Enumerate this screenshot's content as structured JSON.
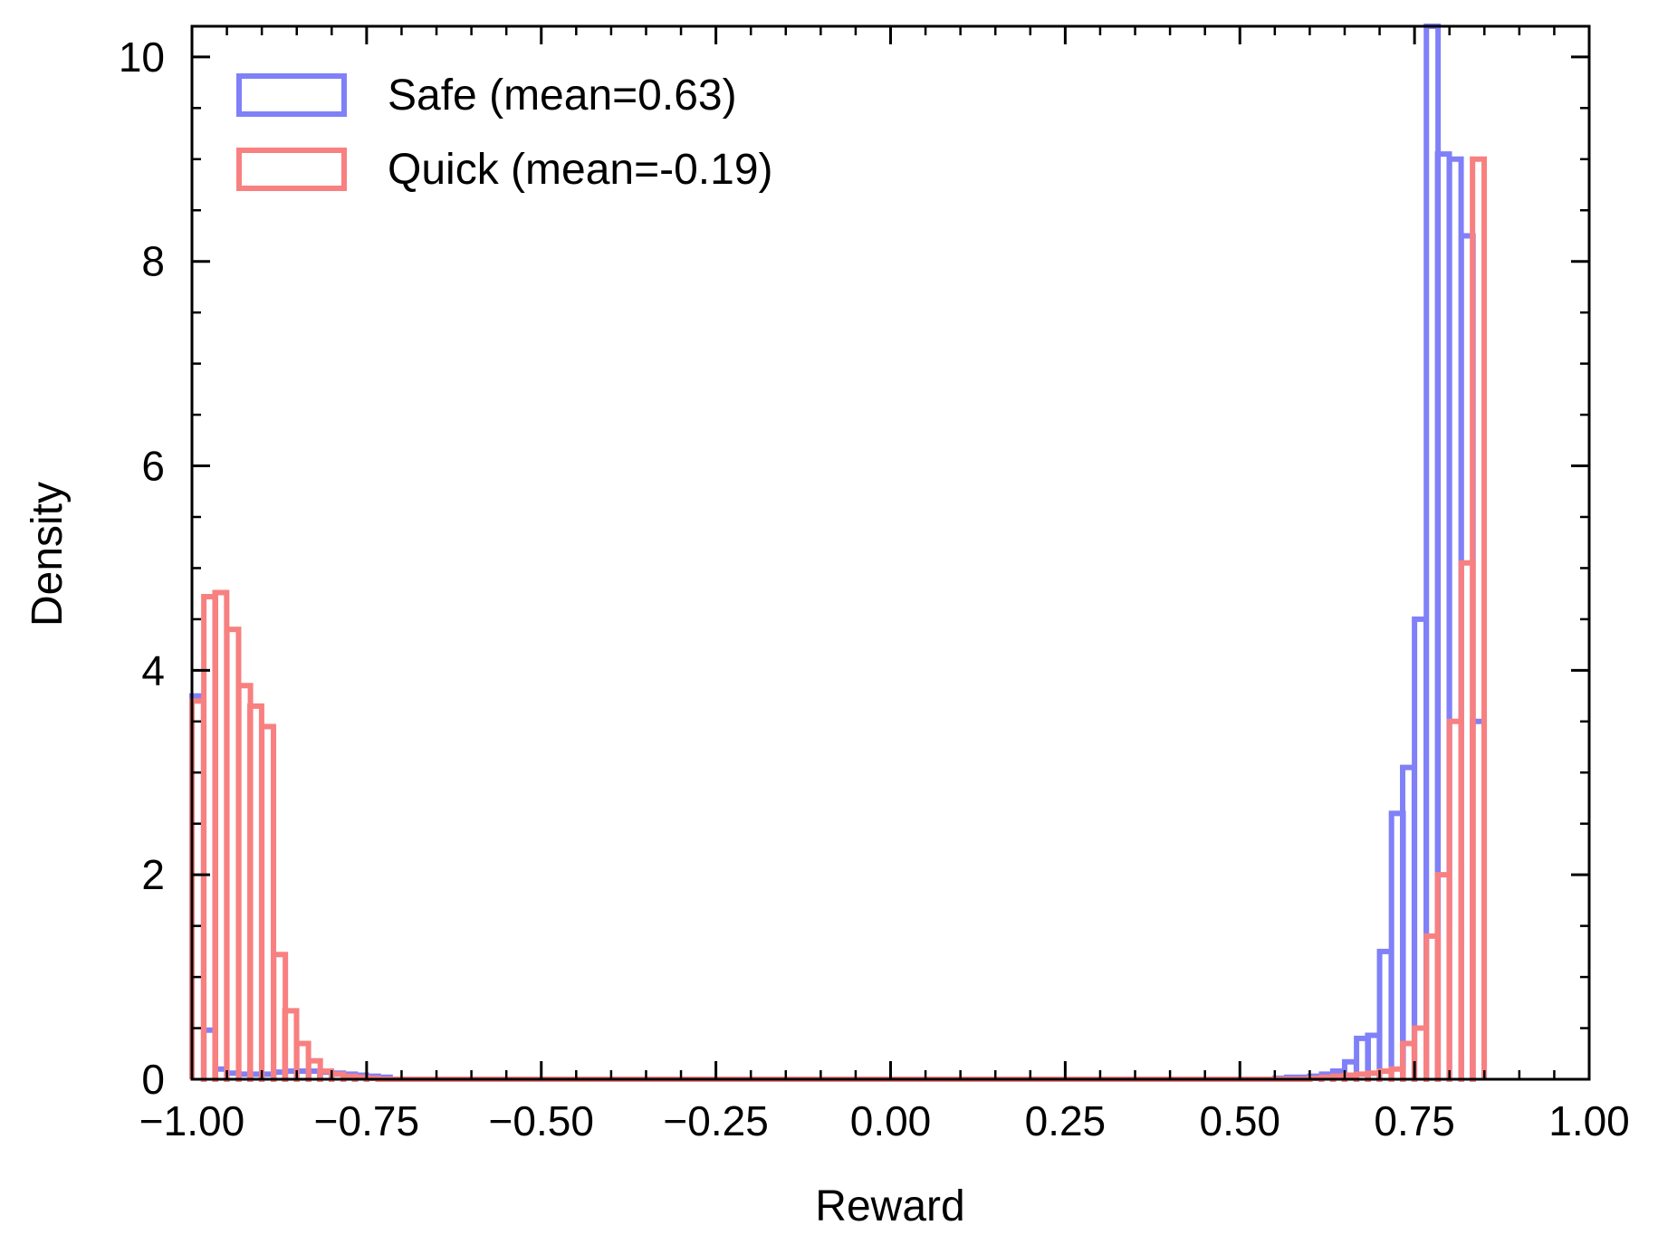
{
  "chart_data": {
    "type": "histogram",
    "xlabel": "Reward",
    "ylabel": "Density",
    "xlim": [
      -1.0,
      1.0
    ],
    "ylim": [
      0,
      10.3
    ],
    "grid": false,
    "legend_position": "top-left",
    "bin_width": 0.0167,
    "x_ticks": [
      -1.0,
      -0.75,
      -0.5,
      -0.25,
      0.0,
      0.25,
      0.5,
      0.75,
      1.0
    ],
    "x_tick_labels": [
      "−1.00",
      "−0.75",
      "−0.50",
      "−0.25",
      "0.00",
      "0.25",
      "0.50",
      "0.75",
      "1.00"
    ],
    "y_ticks": [
      0,
      2,
      4,
      6,
      8,
      10
    ],
    "y_tick_labels": [
      "0",
      "2",
      "4",
      "6",
      "8",
      "10"
    ],
    "series": [
      {
        "name": "Safe (mean=0.63)",
        "color": "#8080f8",
        "bins": [
          [
            -1.0,
            3.75
          ],
          [
            -0.983,
            0.48
          ],
          [
            -0.967,
            0.1
          ],
          [
            -0.95,
            0.06
          ],
          [
            -0.933,
            0.05
          ],
          [
            -0.917,
            0.05
          ],
          [
            -0.9,
            0.05
          ],
          [
            -0.883,
            0.07
          ],
          [
            -0.867,
            0.08
          ],
          [
            -0.85,
            0.08
          ],
          [
            -0.833,
            0.08
          ],
          [
            -0.817,
            0.07
          ],
          [
            -0.8,
            0.06
          ],
          [
            -0.783,
            0.05
          ],
          [
            -0.767,
            0.04
          ],
          [
            -0.75,
            0.03
          ],
          [
            -0.733,
            0.02
          ],
          [
            0.55,
            0.01
          ],
          [
            0.567,
            0.02
          ],
          [
            0.583,
            0.02
          ],
          [
            0.6,
            0.03
          ],
          [
            0.617,
            0.05
          ],
          [
            0.633,
            0.08
          ],
          [
            0.65,
            0.17
          ],
          [
            0.667,
            0.4
          ],
          [
            0.683,
            0.43
          ],
          [
            0.7,
            1.25
          ],
          [
            0.717,
            2.6
          ],
          [
            0.733,
            3.05
          ],
          [
            0.75,
            4.5
          ],
          [
            0.767,
            10.3
          ],
          [
            0.783,
            9.05
          ],
          [
            0.8,
            9.0
          ],
          [
            0.817,
            8.25
          ],
          [
            0.833,
            3.5
          ]
        ]
      },
      {
        "name": "Quick (mean=-0.19)",
        "color": "#f88080",
        "bins": [
          [
            -1.0,
            3.7
          ],
          [
            -0.983,
            4.72
          ],
          [
            -0.967,
            4.76
          ],
          [
            -0.95,
            4.4
          ],
          [
            -0.933,
            3.85
          ],
          [
            -0.917,
            3.65
          ],
          [
            -0.9,
            3.45
          ],
          [
            -0.883,
            1.22
          ],
          [
            -0.867,
            0.67
          ],
          [
            -0.85,
            0.35
          ],
          [
            -0.833,
            0.18
          ],
          [
            -0.817,
            0.08
          ],
          [
            -0.8,
            0.05
          ],
          [
            -0.783,
            0.03
          ],
          [
            -0.767,
            0.02
          ],
          [
            -0.75,
            0.01
          ],
          [
            0.6,
            0.01
          ],
          [
            0.617,
            0.02
          ],
          [
            0.633,
            0.03
          ],
          [
            0.65,
            0.04
          ],
          [
            0.667,
            0.05
          ],
          [
            0.683,
            0.06
          ],
          [
            0.7,
            0.08
          ],
          [
            0.717,
            0.1
          ],
          [
            0.733,
            0.35
          ],
          [
            0.75,
            0.5
          ],
          [
            0.767,
            1.4
          ],
          [
            0.783,
            2.0
          ],
          [
            0.8,
            3.5
          ],
          [
            0.817,
            5.05
          ],
          [
            0.833,
            9.0
          ]
        ]
      }
    ]
  }
}
